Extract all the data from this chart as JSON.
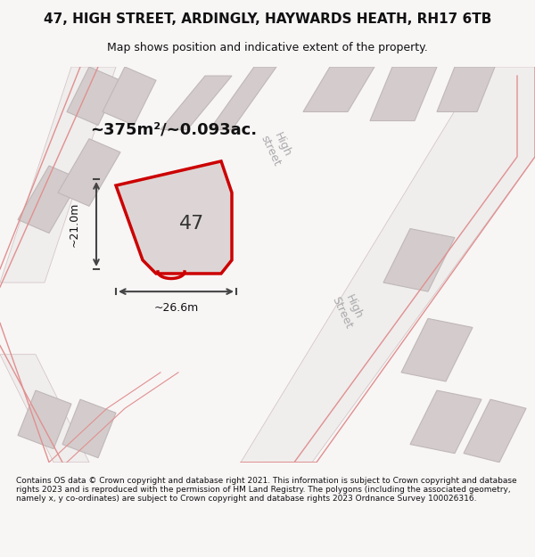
{
  "title": "47, HIGH STREET, ARDINGLY, HAYWARDS HEATH, RH17 6TB",
  "subtitle": "Map shows position and indicative extent of the property.",
  "footer": "Contains OS data © Crown copyright and database right 2021. This information is subject to Crown copyright and database rights 2023 and is reproduced with the permission of HM Land Registry. The polygons (including the associated geometry, namely x, y co-ordinates) are subject to Crown copyright and database rights 2023 Ordnance Survey 100026316.",
  "area_label": "~375m²/~0.093ac.",
  "width_label": "~26.6m",
  "height_label": "~21.0m",
  "number_label": "47",
  "bg_color": "#f5f0f0",
  "map_bg": "#f0eded",
  "plot_color": "#cc0000",
  "plot_fill": "#e8e0e0",
  "road_color": "#e8c8c8",
  "building_color": "#d8d0d0",
  "street_label1": "High\nstreet",
  "street_label2": "High\nStreet"
}
